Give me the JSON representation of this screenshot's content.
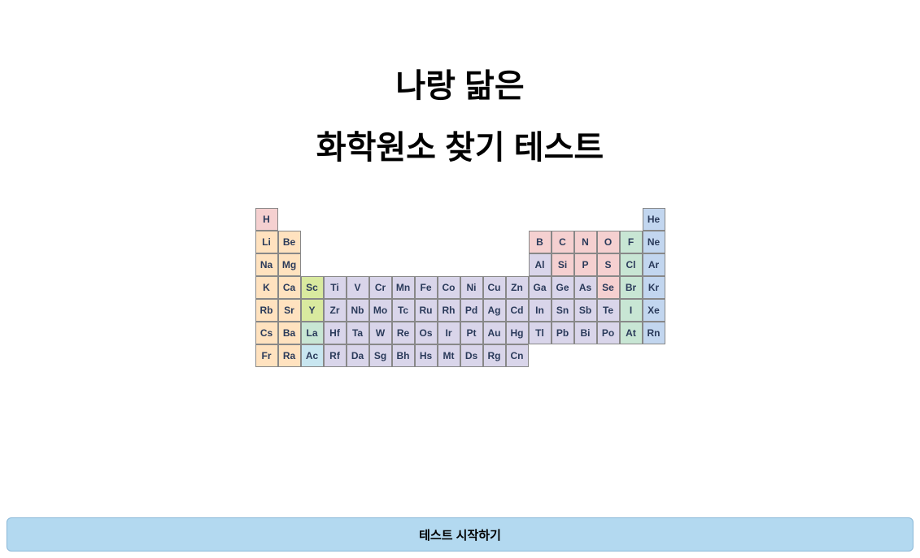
{
  "title_line1": "나랑 닮은",
  "title_line2": "화학원소 찾기 테스트",
  "start_button_label": "테스트 시작하기",
  "periodic_table": {
    "cols": 18,
    "rows": 7,
    "colors": {
      "alkali": "#ffe2bf",
      "alkaline_earth": "#ffe2bf",
      "transition": "#d9d5ea",
      "lanthanide": "#c8e6d4",
      "actinide": "#c8e6f0",
      "metalloid": "#d9ea9f",
      "post_transition": "#d9d5ea",
      "nonmetal": "#f5d0d0",
      "halogen": "#c8e6d4",
      "noble": "#c2d6ef",
      "hydrogen": "#f5d0d0",
      "border": "#888888",
      "text": "#2a3a5a"
    },
    "elements": [
      {
        "sym": "H",
        "row": 1,
        "col": 1,
        "cat": "hydrogen"
      },
      {
        "sym": "He",
        "row": 1,
        "col": 18,
        "cat": "noble"
      },
      {
        "sym": "Li",
        "row": 2,
        "col": 1,
        "cat": "alkali"
      },
      {
        "sym": "Be",
        "row": 2,
        "col": 2,
        "cat": "alkaline_earth"
      },
      {
        "sym": "B",
        "row": 2,
        "col": 13,
        "cat": "nonmetal"
      },
      {
        "sym": "C",
        "row": 2,
        "col": 14,
        "cat": "nonmetal"
      },
      {
        "sym": "N",
        "row": 2,
        "col": 15,
        "cat": "nonmetal"
      },
      {
        "sym": "O",
        "row": 2,
        "col": 16,
        "cat": "nonmetal"
      },
      {
        "sym": "F",
        "row": 2,
        "col": 17,
        "cat": "halogen"
      },
      {
        "sym": "Ne",
        "row": 2,
        "col": 18,
        "cat": "noble"
      },
      {
        "sym": "Na",
        "row": 3,
        "col": 1,
        "cat": "alkali"
      },
      {
        "sym": "Mg",
        "row": 3,
        "col": 2,
        "cat": "alkaline_earth"
      },
      {
        "sym": "Al",
        "row": 3,
        "col": 13,
        "cat": "post_transition"
      },
      {
        "sym": "Si",
        "row": 3,
        "col": 14,
        "cat": "nonmetal"
      },
      {
        "sym": "P",
        "row": 3,
        "col": 15,
        "cat": "nonmetal"
      },
      {
        "sym": "S",
        "row": 3,
        "col": 16,
        "cat": "nonmetal"
      },
      {
        "sym": "Cl",
        "row": 3,
        "col": 17,
        "cat": "halogen"
      },
      {
        "sym": "Ar",
        "row": 3,
        "col": 18,
        "cat": "noble"
      },
      {
        "sym": "K",
        "row": 4,
        "col": 1,
        "cat": "alkali"
      },
      {
        "sym": "Ca",
        "row": 4,
        "col": 2,
        "cat": "alkaline_earth"
      },
      {
        "sym": "Sc",
        "row": 4,
        "col": 3,
        "cat": "metalloid"
      },
      {
        "sym": "Ti",
        "row": 4,
        "col": 4,
        "cat": "transition"
      },
      {
        "sym": "V",
        "row": 4,
        "col": 5,
        "cat": "transition"
      },
      {
        "sym": "Cr",
        "row": 4,
        "col": 6,
        "cat": "transition"
      },
      {
        "sym": "Mn",
        "row": 4,
        "col": 7,
        "cat": "transition"
      },
      {
        "sym": "Fe",
        "row": 4,
        "col": 8,
        "cat": "transition"
      },
      {
        "sym": "Co",
        "row": 4,
        "col": 9,
        "cat": "transition"
      },
      {
        "sym": "Ni",
        "row": 4,
        "col": 10,
        "cat": "transition"
      },
      {
        "sym": "Cu",
        "row": 4,
        "col": 11,
        "cat": "transition"
      },
      {
        "sym": "Zn",
        "row": 4,
        "col": 12,
        "cat": "transition"
      },
      {
        "sym": "Ga",
        "row": 4,
        "col": 13,
        "cat": "post_transition"
      },
      {
        "sym": "Ge",
        "row": 4,
        "col": 14,
        "cat": "post_transition"
      },
      {
        "sym": "As",
        "row": 4,
        "col": 15,
        "cat": "post_transition"
      },
      {
        "sym": "Se",
        "row": 4,
        "col": 16,
        "cat": "nonmetal"
      },
      {
        "sym": "Br",
        "row": 4,
        "col": 17,
        "cat": "halogen"
      },
      {
        "sym": "Kr",
        "row": 4,
        "col": 18,
        "cat": "noble"
      },
      {
        "sym": "Rb",
        "row": 5,
        "col": 1,
        "cat": "alkali"
      },
      {
        "sym": "Sr",
        "row": 5,
        "col": 2,
        "cat": "alkaline_earth"
      },
      {
        "sym": "Y",
        "row": 5,
        "col": 3,
        "cat": "metalloid"
      },
      {
        "sym": "Zr",
        "row": 5,
        "col": 4,
        "cat": "transition"
      },
      {
        "sym": "Nb",
        "row": 5,
        "col": 5,
        "cat": "transition"
      },
      {
        "sym": "Mo",
        "row": 5,
        "col": 6,
        "cat": "transition"
      },
      {
        "sym": "Tc",
        "row": 5,
        "col": 7,
        "cat": "transition"
      },
      {
        "sym": "Ru",
        "row": 5,
        "col": 8,
        "cat": "transition"
      },
      {
        "sym": "Rh",
        "row": 5,
        "col": 9,
        "cat": "transition"
      },
      {
        "sym": "Pd",
        "row": 5,
        "col": 10,
        "cat": "transition"
      },
      {
        "sym": "Ag",
        "row": 5,
        "col": 11,
        "cat": "transition"
      },
      {
        "sym": "Cd",
        "row": 5,
        "col": 12,
        "cat": "transition"
      },
      {
        "sym": "In",
        "row": 5,
        "col": 13,
        "cat": "post_transition"
      },
      {
        "sym": "Sn",
        "row": 5,
        "col": 14,
        "cat": "post_transition"
      },
      {
        "sym": "Sb",
        "row": 5,
        "col": 15,
        "cat": "post_transition"
      },
      {
        "sym": "Te",
        "row": 5,
        "col": 16,
        "cat": "post_transition"
      },
      {
        "sym": "I",
        "row": 5,
        "col": 17,
        "cat": "halogen"
      },
      {
        "sym": "Xe",
        "row": 5,
        "col": 18,
        "cat": "noble"
      },
      {
        "sym": "Cs",
        "row": 6,
        "col": 1,
        "cat": "alkali"
      },
      {
        "sym": "Ba",
        "row": 6,
        "col": 2,
        "cat": "alkaline_earth"
      },
      {
        "sym": "La",
        "row": 6,
        "col": 3,
        "cat": "lanthanide"
      },
      {
        "sym": "Hf",
        "row": 6,
        "col": 4,
        "cat": "transition"
      },
      {
        "sym": "Ta",
        "row": 6,
        "col": 5,
        "cat": "transition"
      },
      {
        "sym": "W",
        "row": 6,
        "col": 6,
        "cat": "transition"
      },
      {
        "sym": "Re",
        "row": 6,
        "col": 7,
        "cat": "transition"
      },
      {
        "sym": "Os",
        "row": 6,
        "col": 8,
        "cat": "transition"
      },
      {
        "sym": "Ir",
        "row": 6,
        "col": 9,
        "cat": "transition"
      },
      {
        "sym": "Pt",
        "row": 6,
        "col": 10,
        "cat": "transition"
      },
      {
        "sym": "Au",
        "row": 6,
        "col": 11,
        "cat": "transition"
      },
      {
        "sym": "Hg",
        "row": 6,
        "col": 12,
        "cat": "transition"
      },
      {
        "sym": "Tl",
        "row": 6,
        "col": 13,
        "cat": "post_transition"
      },
      {
        "sym": "Pb",
        "row": 6,
        "col": 14,
        "cat": "post_transition"
      },
      {
        "sym": "Bi",
        "row": 6,
        "col": 15,
        "cat": "post_transition"
      },
      {
        "sym": "Po",
        "row": 6,
        "col": 16,
        "cat": "post_transition"
      },
      {
        "sym": "At",
        "row": 6,
        "col": 17,
        "cat": "halogen"
      },
      {
        "sym": "Rn",
        "row": 6,
        "col": 18,
        "cat": "noble"
      },
      {
        "sym": "Fr",
        "row": 7,
        "col": 1,
        "cat": "alkali"
      },
      {
        "sym": "Ra",
        "row": 7,
        "col": 2,
        "cat": "alkaline_earth"
      },
      {
        "sym": "Ac",
        "row": 7,
        "col": 3,
        "cat": "actinide"
      },
      {
        "sym": "Rf",
        "row": 7,
        "col": 4,
        "cat": "transition"
      },
      {
        "sym": "Da",
        "row": 7,
        "col": 5,
        "cat": "transition"
      },
      {
        "sym": "Sg",
        "row": 7,
        "col": 6,
        "cat": "transition"
      },
      {
        "sym": "Bh",
        "row": 7,
        "col": 7,
        "cat": "transition"
      },
      {
        "sym": "Hs",
        "row": 7,
        "col": 8,
        "cat": "transition"
      },
      {
        "sym": "Mt",
        "row": 7,
        "col": 9,
        "cat": "transition"
      },
      {
        "sym": "Ds",
        "row": 7,
        "col": 10,
        "cat": "transition"
      },
      {
        "sym": "Rg",
        "row": 7,
        "col": 11,
        "cat": "transition"
      },
      {
        "sym": "Cn",
        "row": 7,
        "col": 12,
        "cat": "transition"
      }
    ]
  },
  "button_bg": "#b3d9f0",
  "button_border": "#8ab8d8"
}
